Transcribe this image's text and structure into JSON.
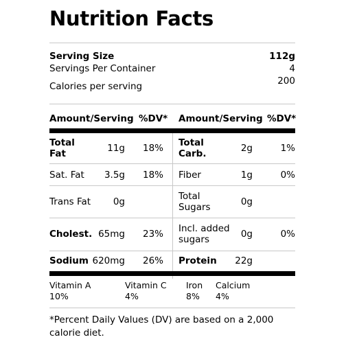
{
  "title": "Nutrition Facts",
  "serving": {
    "size_label": "Serving Size",
    "size_value": "112g",
    "per_container_label": "Servings Per Container",
    "per_container_value": "4",
    "calories_label": "Calories per serving",
    "calories_value": "200"
  },
  "header": {
    "amount_left": "Amount/Serving",
    "dv_left": "%DV*",
    "amount_right": "Amount/Serving",
    "dv_right": "%DV*"
  },
  "rows": [
    {
      "left_name": "Total Fat",
      "left_amount": "11g",
      "left_dv": "18%",
      "right_name": "Total Carb.",
      "right_amount": "2g",
      "right_dv": "1%"
    },
    {
      "left_name": "Sat. Fat",
      "left_amount": "3.5g",
      "left_dv": "18%",
      "right_name": "Fiber",
      "right_amount": "1g",
      "right_dv": "0%"
    },
    {
      "left_name": "Trans Fat",
      "left_amount": "0g",
      "left_dv": "",
      "right_name": "Total Sugars",
      "right_amount": "0g",
      "right_dv": ""
    },
    {
      "left_name": "Cholest.",
      "left_amount": "65mg",
      "left_dv": "23%",
      "right_name": "Incl. added sugars",
      "right_amount": "0g",
      "right_dv": "0%"
    },
    {
      "left_name": "Sodium",
      "left_amount": "620mg",
      "left_dv": "26%",
      "right_name": "Protein",
      "right_amount": "22g",
      "right_dv": ""
    }
  ],
  "vitamins": [
    {
      "name": "Vitamin A",
      "value": "10%"
    },
    {
      "name": "Vitamin C",
      "value": "4%"
    },
    {
      "name": "Iron",
      "value": "8%"
    },
    {
      "name": "Calcium",
      "value": "4%"
    }
  ],
  "footnote": "*Percent Daily Values (DV) are based on a 2,000 calorie diet."
}
